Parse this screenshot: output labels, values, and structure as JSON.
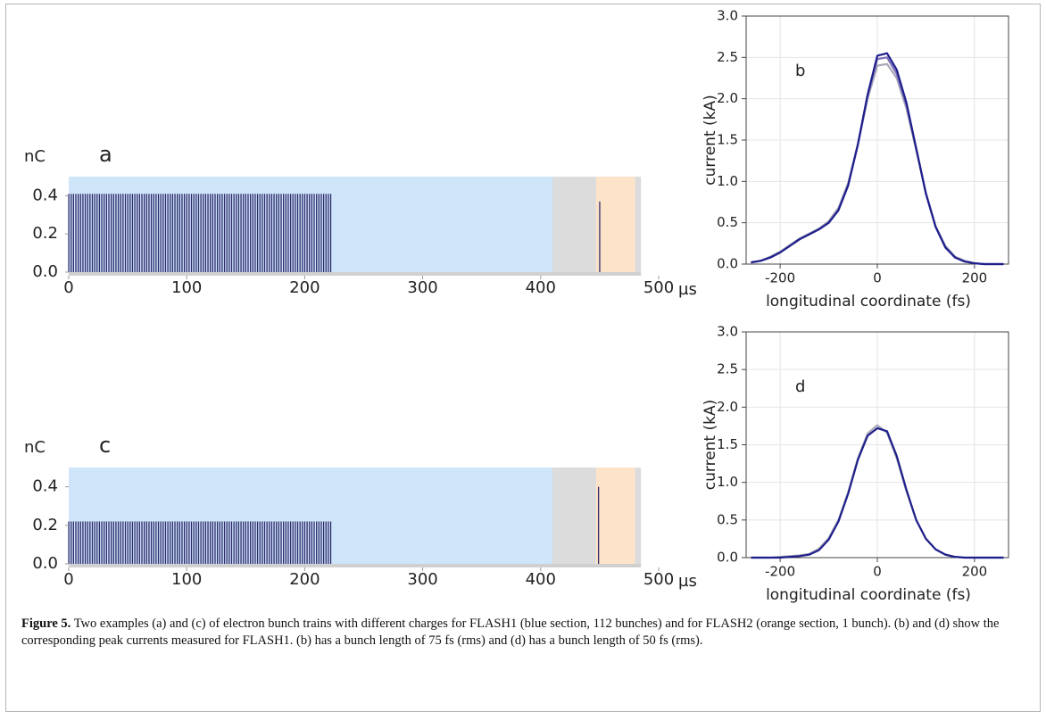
{
  "chart_data": [
    {
      "type": "bar",
      "panel": "a",
      "ylabel": "nC",
      "xunit": "µs",
      "xlim": [
        0,
        500
      ],
      "xticks": [
        0,
        100,
        200,
        300,
        400,
        500
      ],
      "ylim": [
        0,
        0.5
      ],
      "yticks": [
        {
          "value": 0,
          "label": "0.0"
        },
        {
          "value": 0.2,
          "label": "0.2"
        },
        {
          "value": 0.4,
          "label": "0.4"
        }
      ],
      "bands": [
        {
          "from": 0,
          "to": 410,
          "color": "#cfe5fa"
        },
        {
          "from": 410,
          "to": 447,
          "color": "#dcdcdc"
        },
        {
          "from": 447,
          "to": 480,
          "color": "#fde4c9"
        },
        {
          "from": 480,
          "to": 485,
          "color": "#dcdcdc"
        }
      ],
      "series": [
        {
          "color": "#2e2a6b",
          "x": [
            0,
            2,
            4,
            6,
            8,
            10,
            12,
            14,
            16,
            18,
            20,
            22,
            24,
            26,
            28,
            30,
            32,
            34,
            36,
            38,
            40,
            42,
            44,
            46,
            48,
            50,
            52,
            54,
            56,
            58,
            60,
            62,
            64,
            66,
            68,
            70,
            72,
            74,
            76,
            78,
            80,
            82,
            84,
            86,
            88,
            90,
            92,
            94,
            96,
            98,
            100,
            102,
            104,
            106,
            108,
            110,
            112,
            114,
            116,
            118,
            120,
            122,
            124,
            126,
            128,
            130,
            132,
            134,
            136,
            138,
            140,
            142,
            144,
            146,
            148,
            150,
            152,
            154,
            156,
            158,
            160,
            162,
            164,
            166,
            168,
            170,
            172,
            174,
            176,
            178,
            180,
            182,
            184,
            186,
            188,
            190,
            192,
            194,
            196,
            198,
            200,
            202,
            204,
            206,
            208,
            210,
            212,
            214,
            216,
            218,
            220,
            222
          ],
          "values": [
            0.41,
            0.41,
            0.41,
            0.41,
            0.41,
            0.41,
            0.41,
            0.41,
            0.41,
            0.41,
            0.41,
            0.41,
            0.41,
            0.41,
            0.41,
            0.41,
            0.41,
            0.41,
            0.41,
            0.41,
            0.41,
            0.41,
            0.41,
            0.41,
            0.41,
            0.41,
            0.41,
            0.41,
            0.41,
            0.41,
            0.41,
            0.41,
            0.41,
            0.41,
            0.41,
            0.41,
            0.41,
            0.41,
            0.41,
            0.41,
            0.41,
            0.41,
            0.41,
            0.41,
            0.41,
            0.41,
            0.41,
            0.41,
            0.41,
            0.41,
            0.41,
            0.41,
            0.41,
            0.41,
            0.41,
            0.41,
            0.41,
            0.41,
            0.41,
            0.41,
            0.41,
            0.41,
            0.41,
            0.41,
            0.41,
            0.41,
            0.41,
            0.41,
            0.41,
            0.41,
            0.41,
            0.41,
            0.41,
            0.41,
            0.41,
            0.41,
            0.41,
            0.41,
            0.41,
            0.41,
            0.41,
            0.41,
            0.41,
            0.41,
            0.41,
            0.41,
            0.41,
            0.41,
            0.41,
            0.41,
            0.41,
            0.41,
            0.41,
            0.41,
            0.41,
            0.41,
            0.41,
            0.41,
            0.41,
            0.41,
            0.41,
            0.41,
            0.41,
            0.41,
            0.41,
            0.41,
            0.41,
            0.41,
            0.41,
            0.41,
            0.41,
            0.41
          ]
        },
        {
          "color": "#2e2a6b",
          "x": [
            450
          ],
          "values": [
            0.37
          ]
        }
      ]
    },
    {
      "type": "line",
      "panel": "b",
      "ylabel": "current (kA)",
      "xlabel": "longitudinal coordinate (fs)",
      "grid": true,
      "xlim": [
        -270,
        270
      ],
      "xticks": [
        -200,
        0,
        200
      ],
      "ylim": [
        0,
        3
      ],
      "yticks": [
        {
          "value": 0,
          "label": "0.0"
        },
        0.5,
        {
          "value": 1,
          "label": "1.0"
        },
        1.5,
        {
          "value": 2,
          "label": "2.0"
        },
        2.5,
        {
          "value": 3,
          "label": "3.0"
        }
      ],
      "x": [
        -260,
        -240,
        -220,
        -200,
        -180,
        -160,
        -140,
        -120,
        -100,
        -80,
        -60,
        -40,
        -20,
        0,
        20,
        40,
        60,
        80,
        100,
        120,
        140,
        160,
        180,
        200,
        220,
        240,
        260
      ],
      "series": [
        {
          "color": "#a8a8b8",
          "values": [
            0.02,
            0.04,
            0.09,
            0.15,
            0.23,
            0.31,
            0.37,
            0.43,
            0.52,
            0.68,
            0.98,
            1.45,
            2.0,
            2.4,
            2.42,
            2.25,
            1.88,
            1.38,
            0.86,
            0.46,
            0.22,
            0.09,
            0.04,
            0.01,
            0,
            0,
            0
          ]
        },
        {
          "color": "#7a6fb8",
          "values": [
            0.02,
            0.04,
            0.08,
            0.14,
            0.22,
            0.3,
            0.36,
            0.42,
            0.5,
            0.66,
            0.96,
            1.44,
            2.03,
            2.48,
            2.5,
            2.3,
            1.92,
            1.4,
            0.86,
            0.45,
            0.21,
            0.08,
            0.03,
            0.01,
            0,
            0,
            0
          ]
        },
        {
          "color": "#1f1f8c",
          "values": [
            0.02,
            0.04,
            0.08,
            0.14,
            0.22,
            0.3,
            0.36,
            0.42,
            0.5,
            0.65,
            0.95,
            1.45,
            2.05,
            2.52,
            2.55,
            2.35,
            1.95,
            1.4,
            0.85,
            0.45,
            0.2,
            0.08,
            0.03,
            0.01,
            0,
            0,
            0
          ]
        }
      ]
    },
    {
      "type": "bar",
      "panel": "c",
      "ylabel": "nC",
      "xunit": "µs",
      "xlim": [
        0,
        500
      ],
      "xticks": [
        0,
        100,
        200,
        300,
        400,
        500
      ],
      "ylim": [
        0,
        0.5
      ],
      "yticks": [
        {
          "value": 0,
          "label": "0.0"
        },
        {
          "value": 0.2,
          "label": "0.2"
        },
        {
          "value": 0.4,
          "label": "0.4"
        }
      ],
      "bands": [
        {
          "from": 0,
          "to": 410,
          "color": "#cfe5fa"
        },
        {
          "from": 410,
          "to": 447,
          "color": "#dcdcdc"
        },
        {
          "from": 447,
          "to": 480,
          "color": "#fde4c9"
        },
        {
          "from": 480,
          "to": 485,
          "color": "#dcdcdc"
        }
      ],
      "series": [
        {
          "color": "#2e2a6b",
          "x": [
            0,
            2,
            4,
            6,
            8,
            10,
            12,
            14,
            16,
            18,
            20,
            22,
            24,
            26,
            28,
            30,
            32,
            34,
            36,
            38,
            40,
            42,
            44,
            46,
            48,
            50,
            52,
            54,
            56,
            58,
            60,
            62,
            64,
            66,
            68,
            70,
            72,
            74,
            76,
            78,
            80,
            82,
            84,
            86,
            88,
            90,
            92,
            94,
            96,
            98,
            100,
            102,
            104,
            106,
            108,
            110,
            112,
            114,
            116,
            118,
            120,
            122,
            124,
            126,
            128,
            130,
            132,
            134,
            136,
            138,
            140,
            142,
            144,
            146,
            148,
            150,
            152,
            154,
            156,
            158,
            160,
            162,
            164,
            166,
            168,
            170,
            172,
            174,
            176,
            178,
            180,
            182,
            184,
            186,
            188,
            190,
            192,
            194,
            196,
            198,
            200,
            202,
            204,
            206,
            208,
            210,
            212,
            214,
            216,
            218,
            220,
            222
          ],
          "values": [
            0.22,
            0.22,
            0.22,
            0.22,
            0.22,
            0.22,
            0.22,
            0.22,
            0.22,
            0.22,
            0.22,
            0.22,
            0.22,
            0.22,
            0.22,
            0.22,
            0.22,
            0.22,
            0.22,
            0.22,
            0.22,
            0.22,
            0.22,
            0.22,
            0.22,
            0.22,
            0.22,
            0.22,
            0.22,
            0.22,
            0.22,
            0.22,
            0.22,
            0.22,
            0.22,
            0.22,
            0.22,
            0.22,
            0.22,
            0.22,
            0.22,
            0.22,
            0.22,
            0.22,
            0.22,
            0.22,
            0.22,
            0.22,
            0.22,
            0.22,
            0.22,
            0.22,
            0.22,
            0.22,
            0.22,
            0.22,
            0.22,
            0.22,
            0.22,
            0.22,
            0.22,
            0.22,
            0.22,
            0.22,
            0.22,
            0.22,
            0.22,
            0.22,
            0.22,
            0.22,
            0.22,
            0.22,
            0.22,
            0.22,
            0.22,
            0.22,
            0.22,
            0.22,
            0.22,
            0.22,
            0.22,
            0.22,
            0.22,
            0.22,
            0.22,
            0.22,
            0.22,
            0.22,
            0.22,
            0.22,
            0.22,
            0.22,
            0.22,
            0.22,
            0.22,
            0.22,
            0.22,
            0.22,
            0.22,
            0.22,
            0.22,
            0.22,
            0.22,
            0.22,
            0.22,
            0.22,
            0.22,
            0.22,
            0.22,
            0.22,
            0.22,
            0.22
          ]
        },
        {
          "color": "#2e2a6b",
          "x": [
            449
          ],
          "values": [
            0.4
          ]
        }
      ]
    },
    {
      "type": "line",
      "panel": "d",
      "ylabel": "current (kA)",
      "xlabel": "longitudinal coordinate (fs)",
      "grid": true,
      "xlim": [
        -270,
        270
      ],
      "xticks": [
        -200,
        0,
        200
      ],
      "ylim": [
        0,
        3
      ],
      "yticks": [
        {
          "value": 0,
          "label": "0.0"
        },
        0.5,
        {
          "value": 1,
          "label": "1.0"
        },
        1.5,
        {
          "value": 2,
          "label": "2.0"
        },
        2.5,
        {
          "value": 3,
          "label": "3.0"
        }
      ],
      "x": [
        -260,
        -240,
        -220,
        -200,
        -180,
        -160,
        -140,
        -120,
        -100,
        -80,
        -60,
        -40,
        -20,
        0,
        20,
        40,
        60,
        80,
        100,
        120,
        140,
        160,
        180,
        200,
        220,
        240,
        260
      ],
      "series": [
        {
          "color": "#a8a8b8",
          "values": [
            0,
            0,
            0,
            0.01,
            0.02,
            0.03,
            0.05,
            0.12,
            0.26,
            0.5,
            0.87,
            1.32,
            1.65,
            1.76,
            1.66,
            1.32,
            0.88,
            0.5,
            0.25,
            0.11,
            0.04,
            0.01,
            0,
            0,
            0,
            0,
            0
          ]
        },
        {
          "color": "#1f1f8c",
          "values": [
            0,
            0,
            0,
            0,
            0.01,
            0.02,
            0.04,
            0.1,
            0.24,
            0.48,
            0.85,
            1.3,
            1.62,
            1.72,
            1.68,
            1.35,
            0.9,
            0.5,
            0.25,
            0.11,
            0.04,
            0.01,
            0,
            0,
            0,
            0,
            0
          ]
        }
      ]
    }
  ],
  "caption": {
    "label": "Figure 5.",
    "text": "Two examples (a) and (c) of electron bunch trains with different charges for FLASH1 (blue section, 112 bunches) and for FLASH2 (orange section, 1 bunch). (b) and (d) show the corresponding peak currents measured for FLASH1. (b) has a bunch length of 75 fs (rms) and (d) has a bunch length of 50 fs (rms)."
  }
}
